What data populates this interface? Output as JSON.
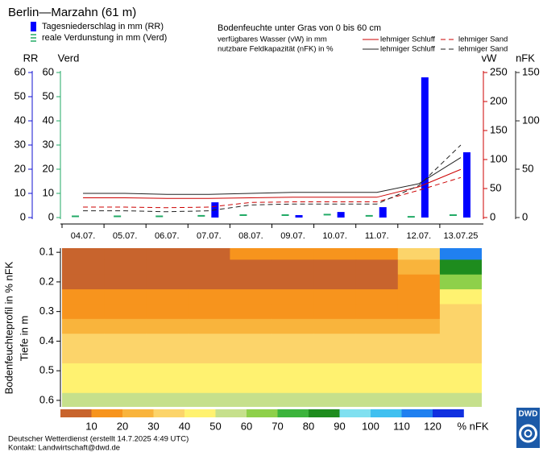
{
  "header": {
    "title": "Berlin—Marzahn (61 m)",
    "soil_title": "Bodenfeuchte unter Gras von 0 bis 60 cm"
  },
  "chart_data": [
    {
      "type": "bar_line",
      "categories": [
        "04.07.",
        "05.07.",
        "06.07.",
        "07.07.",
        "08.07.",
        "09.07.",
        "10.07.",
        "11.07.",
        "12.07.",
        "13.07.25"
      ],
      "y_label": "RR",
      "ylim": [
        0,
        60
      ],
      "yticks": [
        0,
        10,
        20,
        30,
        40,
        50,
        60
      ],
      "y_color": "#1010d0",
      "verd_label": "Verd",
      "verd_lim": [
        0,
        60
      ],
      "verd_ticks": [
        0,
        10,
        20,
        30,
        40,
        50,
        60
      ],
      "verd_color": "#22aa66",
      "y2_label": "vW",
      "y2lim": [
        0,
        250
      ],
      "y2ticks": [
        0,
        50,
        100,
        150,
        200,
        250
      ],
      "y2_color": "#cc0000",
      "y3_label": "nFK",
      "y3lim": [
        0,
        150
      ],
      "y3ticks": [
        0,
        50,
        100,
        150
      ],
      "y3_color": "#222222",
      "line_groups": [
        "verfügbares Wasser (vW) in mm",
        "nutzbare Feldkapazität (nFK) in %"
      ],
      "series": [
        {
          "name": "Tagesniederschlag in mm (RR)",
          "mark": "bar",
          "axis": "y",
          "color": "#0000ff",
          "values": [
            0,
            0,
            0,
            6.3,
            0,
            1,
            2.3,
            4.3,
            58,
            27
          ]
        },
        {
          "name": "reale Verdunstung in mm (Verd)",
          "mark": "dash",
          "axis": "verd",
          "color": "#22aa66",
          "values": [
            0.5,
            0.5,
            0.5,
            0.7,
            1,
            1,
            1.2,
            0.7,
            0.3,
            1
          ]
        },
        {
          "name": "lehmiger Schluff",
          "mark": "line",
          "axis": "y2",
          "group": 0,
          "dashed": false,
          "color": "#cc0000",
          "values": [
            34,
            34,
            33,
            33,
            34,
            35,
            35,
            35,
            53,
            83
          ]
        },
        {
          "name": "lehmiger Sand",
          "mark": "line",
          "axis": "y2",
          "group": 0,
          "dashed": true,
          "color": "#cc0000",
          "values": [
            18,
            18,
            17,
            18,
            26,
            27,
            27,
            27,
            47,
            69
          ]
        },
        {
          "name": "lehmiger Schluff",
          "mark": "line",
          "axis": "y3",
          "group": 1,
          "dashed": false,
          "color": "#222222",
          "values": [
            25,
            25,
            24,
            24,
            25,
            26,
            26,
            26,
            35,
            62
          ]
        },
        {
          "name": "lehmiger Sand",
          "mark": "line",
          "axis": "y3",
          "group": 1,
          "dashed": true,
          "color": "#222222",
          "values": [
            7,
            7,
            6,
            7,
            13,
            14,
            14,
            14,
            33,
            75
          ]
        }
      ]
    },
    {
      "type": "heatmap",
      "y_label": "Bodenfeuchteprofil in % nFK",
      "y_sublabel": "Tiefe in m",
      "ylim": [
        0.086,
        0.622
      ],
      "yticks": [
        0.1,
        0.2,
        0.3,
        0.4,
        0.5,
        0.6
      ],
      "depths": [
        0.1,
        0.15,
        0.2,
        0.25,
        0.3,
        0.35,
        0.4,
        0.45,
        0.5,
        0.55,
        0.6
      ],
      "values": [
        [
          5,
          5,
          5,
          5,
          15,
          15,
          15,
          15,
          35,
          110
        ],
        [
          5,
          5,
          5,
          5,
          5,
          5,
          5,
          5,
          25,
          80
        ],
        [
          5,
          5,
          5,
          5,
          5,
          5,
          5,
          5,
          15,
          60
        ],
        [
          15,
          15,
          15,
          15,
          15,
          15,
          15,
          15,
          15,
          45
        ],
        [
          15,
          15,
          15,
          15,
          15,
          15,
          15,
          15,
          15,
          35
        ],
        [
          25,
          25,
          25,
          25,
          25,
          25,
          25,
          25,
          25,
          35
        ],
        [
          35,
          35,
          35,
          35,
          35,
          35,
          35,
          35,
          35,
          35
        ],
        [
          35,
          35,
          35,
          35,
          35,
          35,
          35,
          35,
          35,
          35
        ],
        [
          45,
          45,
          45,
          45,
          45,
          45,
          45,
          45,
          45,
          45
        ],
        [
          45,
          45,
          45,
          45,
          45,
          45,
          45,
          45,
          45,
          45
        ],
        [
          55,
          55,
          55,
          55,
          55,
          55,
          55,
          55,
          55,
          55
        ]
      ],
      "levels": [
        10,
        20,
        30,
        40,
        50,
        60,
        70,
        80,
        90,
        100,
        110,
        120
      ],
      "level_unit": "% nFK",
      "colors": [
        "#c8642d",
        "#f7941d",
        "#f9b43c",
        "#fcd46a",
        "#fff270",
        "#c6e08c",
        "#8ed04a",
        "#3cb43c",
        "#1e8c1e",
        "#80e0f0",
        "#40c0f0",
        "#2080f0",
        "#1030e0"
      ]
    }
  ],
  "footer": {
    "line1": "Deutscher Wetterdienst (erstellt 14.7.2025 4:49 UTC)",
    "line2": "Kontakt: Landwirtschaft@dwd.de",
    "logo": "DWD"
  }
}
